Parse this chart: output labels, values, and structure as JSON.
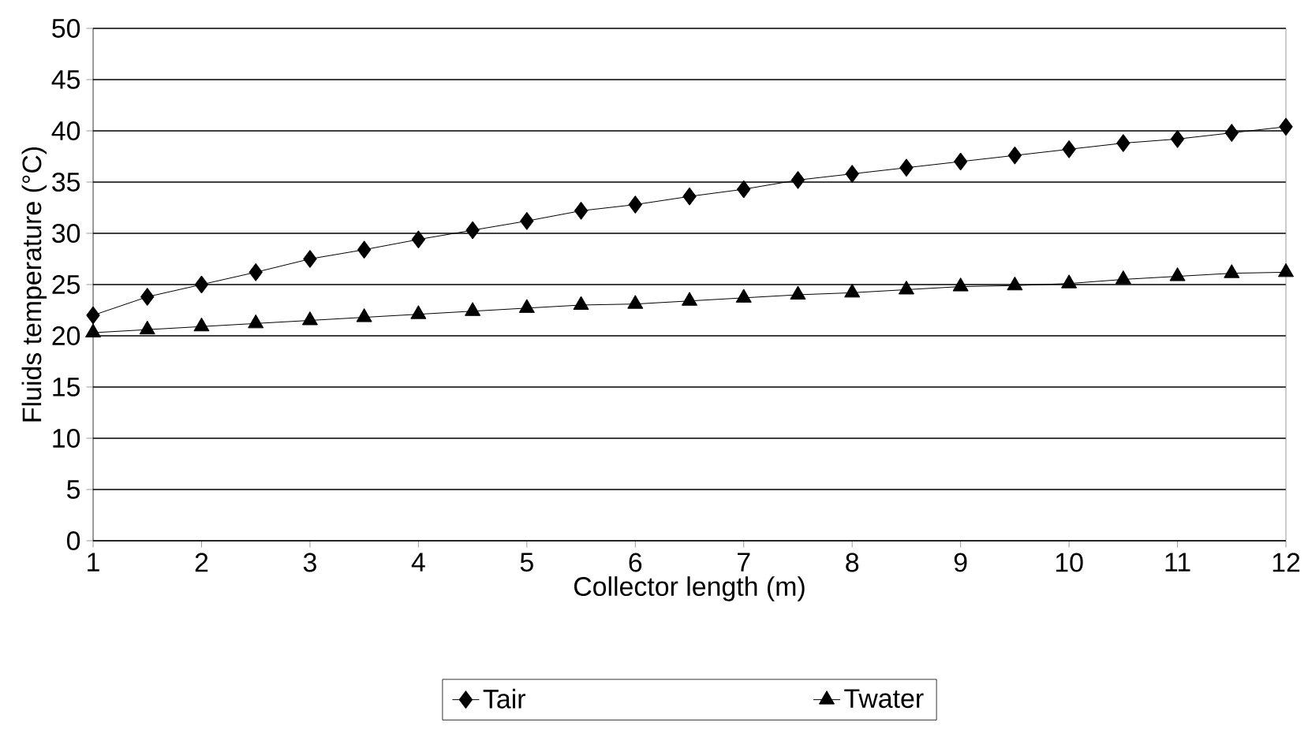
{
  "chart_data": {
    "type": "line",
    "xlabel": "Collector length (m)",
    "ylabel": "Fluids temperature (°C)",
    "x": [
      1,
      1.5,
      2,
      2.5,
      3,
      3.5,
      4,
      4.5,
      5,
      5.5,
      6,
      6.5,
      7,
      7.5,
      8,
      8.5,
      9,
      9.5,
      10,
      10.5,
      11,
      11.5,
      12
    ],
    "series": [
      {
        "name": "Tair",
        "color": "#000000",
        "marker": "diamond",
        "values": [
          22,
          23.8,
          25,
          26.2,
          27.5,
          28.4,
          29.4,
          30.3,
          31.2,
          32.2,
          32.8,
          33.6,
          34.3,
          35.2,
          35.8,
          36.4,
          37,
          37.6,
          38.2,
          38.8,
          39.2,
          39.8,
          40.4
        ]
      },
      {
        "name": "Twater",
        "color": "#000000",
        "marker": "triangle",
        "values": [
          20.3,
          20.6,
          20.9,
          21.2,
          21.5,
          21.8,
          22.1,
          22.4,
          22.7,
          23.0,
          23.1,
          23.4,
          23.7,
          24.0,
          24.2,
          24.5,
          24.8,
          24.9,
          25.1,
          25.5,
          25.8,
          26.1,
          26.2
        ]
      }
    ],
    "xlim": [
      1,
      12
    ],
    "xticks": [
      1,
      2,
      3,
      4,
      5,
      6,
      7,
      8,
      9,
      10,
      11,
      12
    ],
    "ylim": [
      0,
      50
    ],
    "yticks": [
      0,
      5,
      10,
      15,
      20,
      25,
      30,
      35,
      40,
      45,
      50
    ],
    "grid": "y",
    "legend": "bottom",
    "line_style": "solid"
  }
}
